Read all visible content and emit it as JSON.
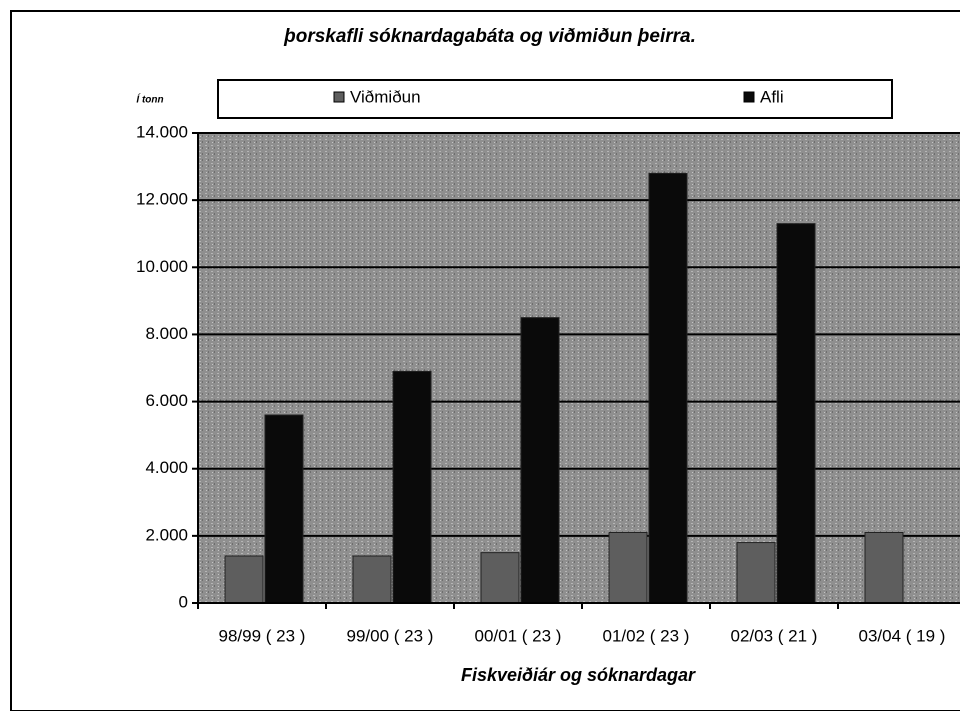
{
  "chart_data": {
    "type": "bar",
    "title": "þorskafli sóknardagabáta og viðmiðun þeirra.",
    "y_label": "Í tonn",
    "x_label": "Fiskveiðiár og sóknardagar",
    "categories": [
      "98/99 ( 23 )",
      "99/00 ( 23 )",
      "00/01 ( 23 )",
      "01/02 ( 23 )",
      "02/03 ( 21 )",
      "03/04 ( 19 )"
    ],
    "series": [
      {
        "name": "Viðmiðun",
        "color": "#5e5e5e",
        "values": [
          1400,
          1400,
          1500,
          2100,
          1800,
          2100
        ]
      },
      {
        "name": "Afli",
        "color": "#0a0a0a",
        "values": [
          5600,
          6900,
          8500,
          12800,
          11300,
          null
        ]
      }
    ],
    "ylim": [
      0,
      14000
    ],
    "yticks": [
      0,
      {
        "value": 2000,
        "label": "2.000"
      },
      {
        "value": 4000,
        "label": "4.000"
      },
      {
        "value": 6000,
        "label": "6.000"
      },
      {
        "value": 8000,
        "label": "8.000"
      },
      {
        "value": 10000,
        "label": "10.000"
      },
      {
        "value": 12000,
        "label": "12.000"
      },
      {
        "value": 14000,
        "label": "14.000"
      }
    ],
    "grid": true,
    "legend": "top"
  }
}
